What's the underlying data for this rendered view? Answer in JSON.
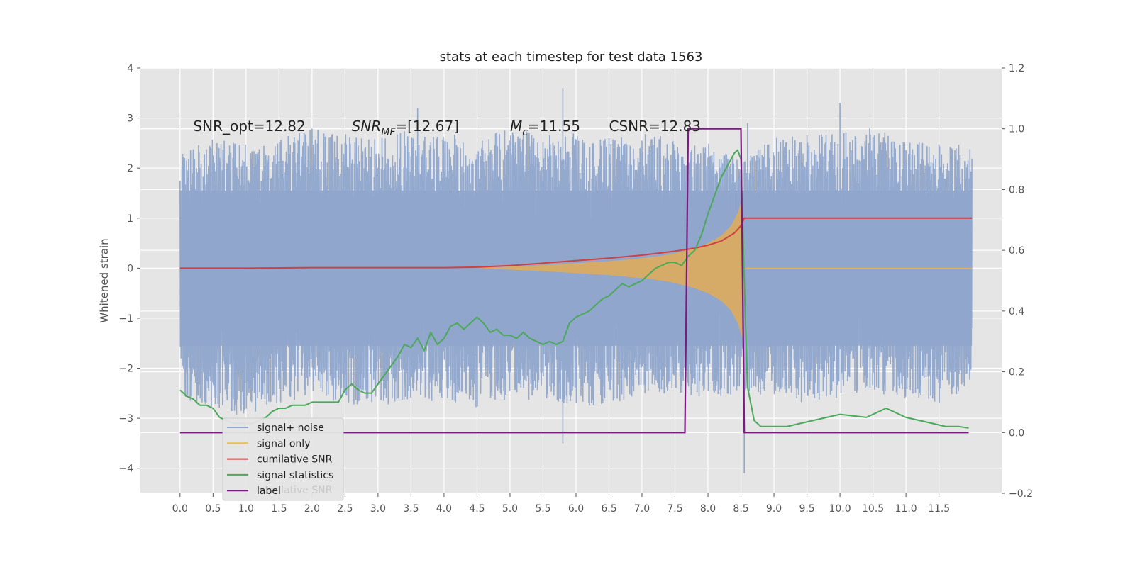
{
  "chart_data": {
    "type": "line",
    "title": "stats at each timestep for test data 1563",
    "xlabel": "",
    "ylabel": "Whitened strain",
    "y2label": "",
    "xlim": [
      -0.6,
      12.45
    ],
    "ylim": [
      -4.5,
      4
    ],
    "y2lim": [
      -0.2,
      1.2
    ],
    "grid": true,
    "xticks": [
      "0.0",
      "0.5",
      "1.0",
      "1.5",
      "2.0",
      "2.5",
      "3.0",
      "3.5",
      "4.0",
      "4.5",
      "5.0",
      "5.5",
      "6.0",
      "6.5",
      "7.0",
      "7.5",
      "8.0",
      "8.5",
      "9.0",
      "9.5",
      "10.0",
      "10.5",
      "11.0",
      "11.5"
    ],
    "yticks": [
      "−4",
      "−3",
      "−2",
      "−1",
      "0",
      "1",
      "2",
      "3",
      "4"
    ],
    "y2ticks": [
      "−0.2",
      "0.0",
      "0.2",
      "0.4",
      "0.6",
      "0.8",
      "1.0",
      "1.2"
    ],
    "annotations": [
      {
        "text": "SNR_opt=12.82",
        "x": 0.2,
        "y": 2.85
      },
      {
        "text": "SNR_MF=[12.67]",
        "x": 2.6,
        "y": 2.85
      },
      {
        "text": "M_c=11.55",
        "x": 5.0,
        "y": 2.85
      },
      {
        "text": "CSNR=12.83",
        "x": 6.5,
        "y": 2.85
      }
    ],
    "legend": {
      "placement": "lower-left",
      "entries": [
        "signal+ noise",
        "signal only",
        "cumilative SNR",
        "signal statistics",
        "label"
      ],
      "ghost_text": "cumilative SNR"
    },
    "colors": {
      "signal_noise": "#8fa5cc",
      "signal_only": "#e3ac55",
      "signal_only_line": "#f0c040",
      "cumulative_snr": "#d04040",
      "signal_statistics": "#4ca85a",
      "label": "#7a1a82",
      "plot_bg": "#e5e5e5",
      "grid": "#ffffff"
    },
    "series": [
      {
        "name": "signal+ noise",
        "axis": "left",
        "description_envelope": {
          "x": [
            0.0,
            0.5,
            1.0,
            1.5,
            2.0,
            2.5,
            3.0,
            3.5,
            4.0,
            4.5,
            5.0,
            5.5,
            6.0,
            6.5,
            7.0,
            7.5,
            8.0,
            8.5,
            9.0,
            9.5,
            10.0,
            10.5,
            11.0,
            11.5,
            12.0
          ],
          "upper": [
            2.3,
            2.6,
            2.5,
            2.6,
            2.8,
            2.7,
            2.6,
            2.8,
            2.7,
            2.6,
            2.8,
            2.7,
            2.7,
            2.6,
            2.7,
            2.6,
            2.5,
            2.2,
            2.6,
            2.7,
            2.7,
            2.8,
            2.6,
            2.6,
            2.4
          ],
          "lower": [
            -2.6,
            -2.8,
            -3.0,
            -2.7,
            -2.6,
            -2.7,
            -2.8,
            -2.6,
            -2.7,
            -2.8,
            -2.7,
            -2.6,
            -2.8,
            -2.7,
            -2.6,
            -2.5,
            -2.6,
            -2.5,
            -2.6,
            -2.7,
            -2.6,
            -2.5,
            -2.6,
            -2.7,
            -2.4
          ],
          "spikes": [
            [
              5.8,
              3.6
            ],
            [
              5.8,
              -3.5
            ],
            [
              8.55,
              -4.1
            ],
            [
              10.0,
              3.3
            ],
            [
              8.6,
              2.9
            ],
            [
              3.6,
              3.2
            ]
          ]
        }
      },
      {
        "name": "signal only",
        "axis": "left",
        "envelope": {
          "x": [
            4.5,
            5.0,
            5.5,
            6.0,
            6.5,
            7.0,
            7.2,
            7.4,
            7.6,
            7.8,
            8.0,
            8.2,
            8.35,
            8.45,
            8.52,
            8.56
          ],
          "amp": [
            0.0,
            0.03,
            0.06,
            0.1,
            0.14,
            0.2,
            0.23,
            0.27,
            0.33,
            0.4,
            0.5,
            0.65,
            0.85,
            1.1,
            1.4,
            0.0
          ]
        }
      },
      {
        "name": "cumilative SNR",
        "axis": "left",
        "x": [
          0.0,
          1.0,
          2.0,
          3.0,
          4.0,
          4.5,
          5.0,
          5.5,
          6.0,
          6.5,
          7.0,
          7.5,
          7.8,
          8.0,
          8.2,
          8.4,
          8.5,
          8.55,
          12.0
        ],
        "y": [
          0.0,
          0.0,
          0.01,
          0.01,
          0.01,
          0.02,
          0.05,
          0.1,
          0.15,
          0.2,
          0.26,
          0.34,
          0.4,
          0.46,
          0.54,
          0.7,
          0.85,
          1.0,
          1.0
        ]
      },
      {
        "name": "signal statistics",
        "axis": "right",
        "x": [
          0.0,
          0.1,
          0.2,
          0.3,
          0.4,
          0.5,
          0.6,
          0.7,
          0.8,
          0.9,
          1.0,
          1.1,
          1.2,
          1.3,
          1.4,
          1.5,
          1.6,
          1.7,
          1.8,
          1.9,
          2.0,
          2.1,
          2.2,
          2.3,
          2.4,
          2.5,
          2.6,
          2.7,
          2.8,
          2.9,
          3.0,
          3.1,
          3.2,
          3.3,
          3.4,
          3.5,
          3.6,
          3.7,
          3.8,
          3.9,
          4.0,
          4.1,
          4.2,
          4.3,
          4.4,
          4.5,
          4.6,
          4.7,
          4.8,
          4.9,
          5.0,
          5.1,
          5.2,
          5.3,
          5.4,
          5.5,
          5.6,
          5.7,
          5.8,
          5.9,
          6.0,
          6.1,
          6.2,
          6.3,
          6.4,
          6.5,
          6.6,
          6.7,
          6.8,
          6.9,
          7.0,
          7.1,
          7.2,
          7.3,
          7.4,
          7.5,
          7.6,
          7.7,
          7.8,
          7.9,
          8.0,
          8.1,
          8.2,
          8.3,
          8.4,
          8.45,
          8.5,
          8.55,
          8.6,
          8.7,
          8.8,
          8.9,
          9.0,
          9.2,
          9.4,
          9.6,
          9.8,
          10.0,
          10.2,
          10.4,
          10.6,
          10.7,
          10.8,
          11.0,
          11.2,
          11.4,
          11.6,
          11.8,
          11.95
        ],
        "y": [
          0.14,
          0.12,
          0.11,
          0.09,
          0.09,
          0.08,
          0.05,
          0.04,
          0.03,
          0.03,
          0.03,
          0.03,
          0.04,
          0.05,
          0.07,
          0.08,
          0.08,
          0.09,
          0.09,
          0.09,
          0.1,
          0.1,
          0.1,
          0.1,
          0.1,
          0.14,
          0.16,
          0.14,
          0.13,
          0.13,
          0.16,
          0.19,
          0.22,
          0.25,
          0.29,
          0.28,
          0.31,
          0.27,
          0.33,
          0.29,
          0.31,
          0.35,
          0.36,
          0.34,
          0.36,
          0.38,
          0.36,
          0.33,
          0.34,
          0.32,
          0.32,
          0.31,
          0.33,
          0.31,
          0.3,
          0.29,
          0.3,
          0.29,
          0.3,
          0.36,
          0.38,
          0.39,
          0.4,
          0.42,
          0.44,
          0.45,
          0.47,
          0.49,
          0.48,
          0.49,
          0.5,
          0.52,
          0.54,
          0.55,
          0.56,
          0.56,
          0.55,
          0.58,
          0.6,
          0.65,
          0.72,
          0.78,
          0.84,
          0.88,
          0.92,
          0.93,
          0.9,
          0.5,
          0.15,
          0.04,
          0.02,
          0.02,
          0.02,
          0.02,
          0.03,
          0.04,
          0.05,
          0.06,
          0.055,
          0.05,
          0.07,
          0.08,
          0.07,
          0.05,
          0.04,
          0.03,
          0.02,
          0.02,
          0.015
        ]
      },
      {
        "name": "label",
        "axis": "right",
        "x": [
          0.0,
          7.65,
          7.7,
          8.5,
          8.55,
          11.95
        ],
        "y": [
          0.0,
          0.0,
          1.0,
          1.0,
          0.0,
          0.0
        ]
      }
    ]
  }
}
